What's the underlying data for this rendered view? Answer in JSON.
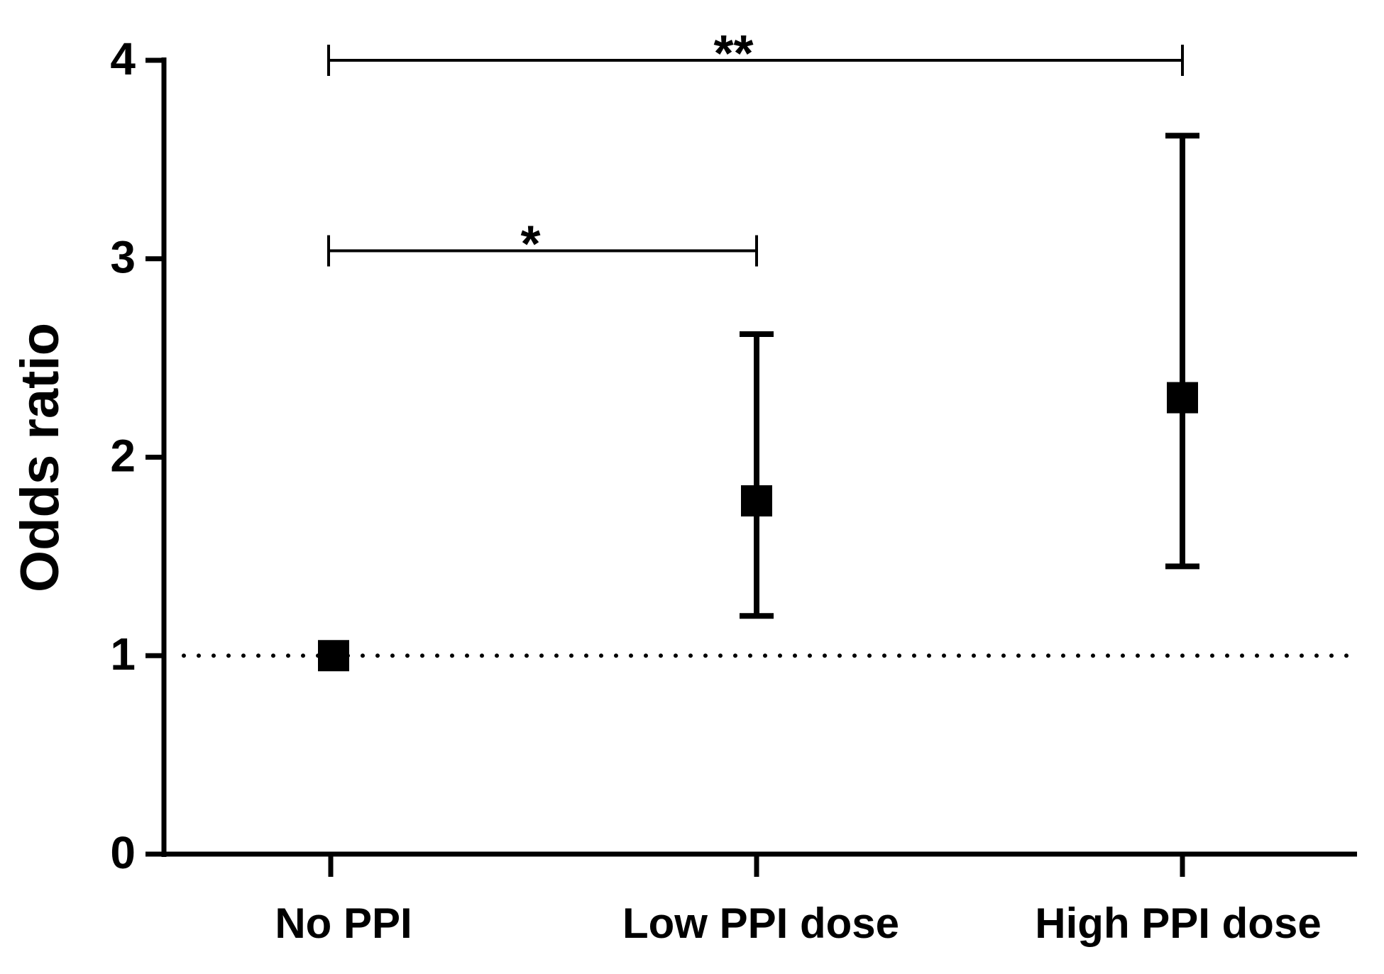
{
  "chart_data": {
    "type": "errorbar",
    "y_label": "Odds ratio",
    "categories": [
      "No PPI",
      "Low PPI dose",
      "High PPI dose"
    ],
    "series": [
      {
        "color": "#000000",
        "values": [
          1,
          1.78,
          2.3
        ],
        "ci_low": [
          null,
          1.2,
          1.45
        ],
        "ci_high": [
          null,
          2.62,
          3.62
        ]
      }
    ],
    "ylim": [
      0,
      4
    ],
    "yticks": [
      0,
      1,
      2,
      3,
      4
    ],
    "reference_line": 1,
    "significance": [
      {
        "label": "*",
        "between": [
          "No PPI",
          "Low PPI dose"
        ],
        "y": 3.04
      },
      {
        "label": "**",
        "between": [
          "No PPI",
          "High PPI dose"
        ],
        "y": 4
      }
    ]
  }
}
